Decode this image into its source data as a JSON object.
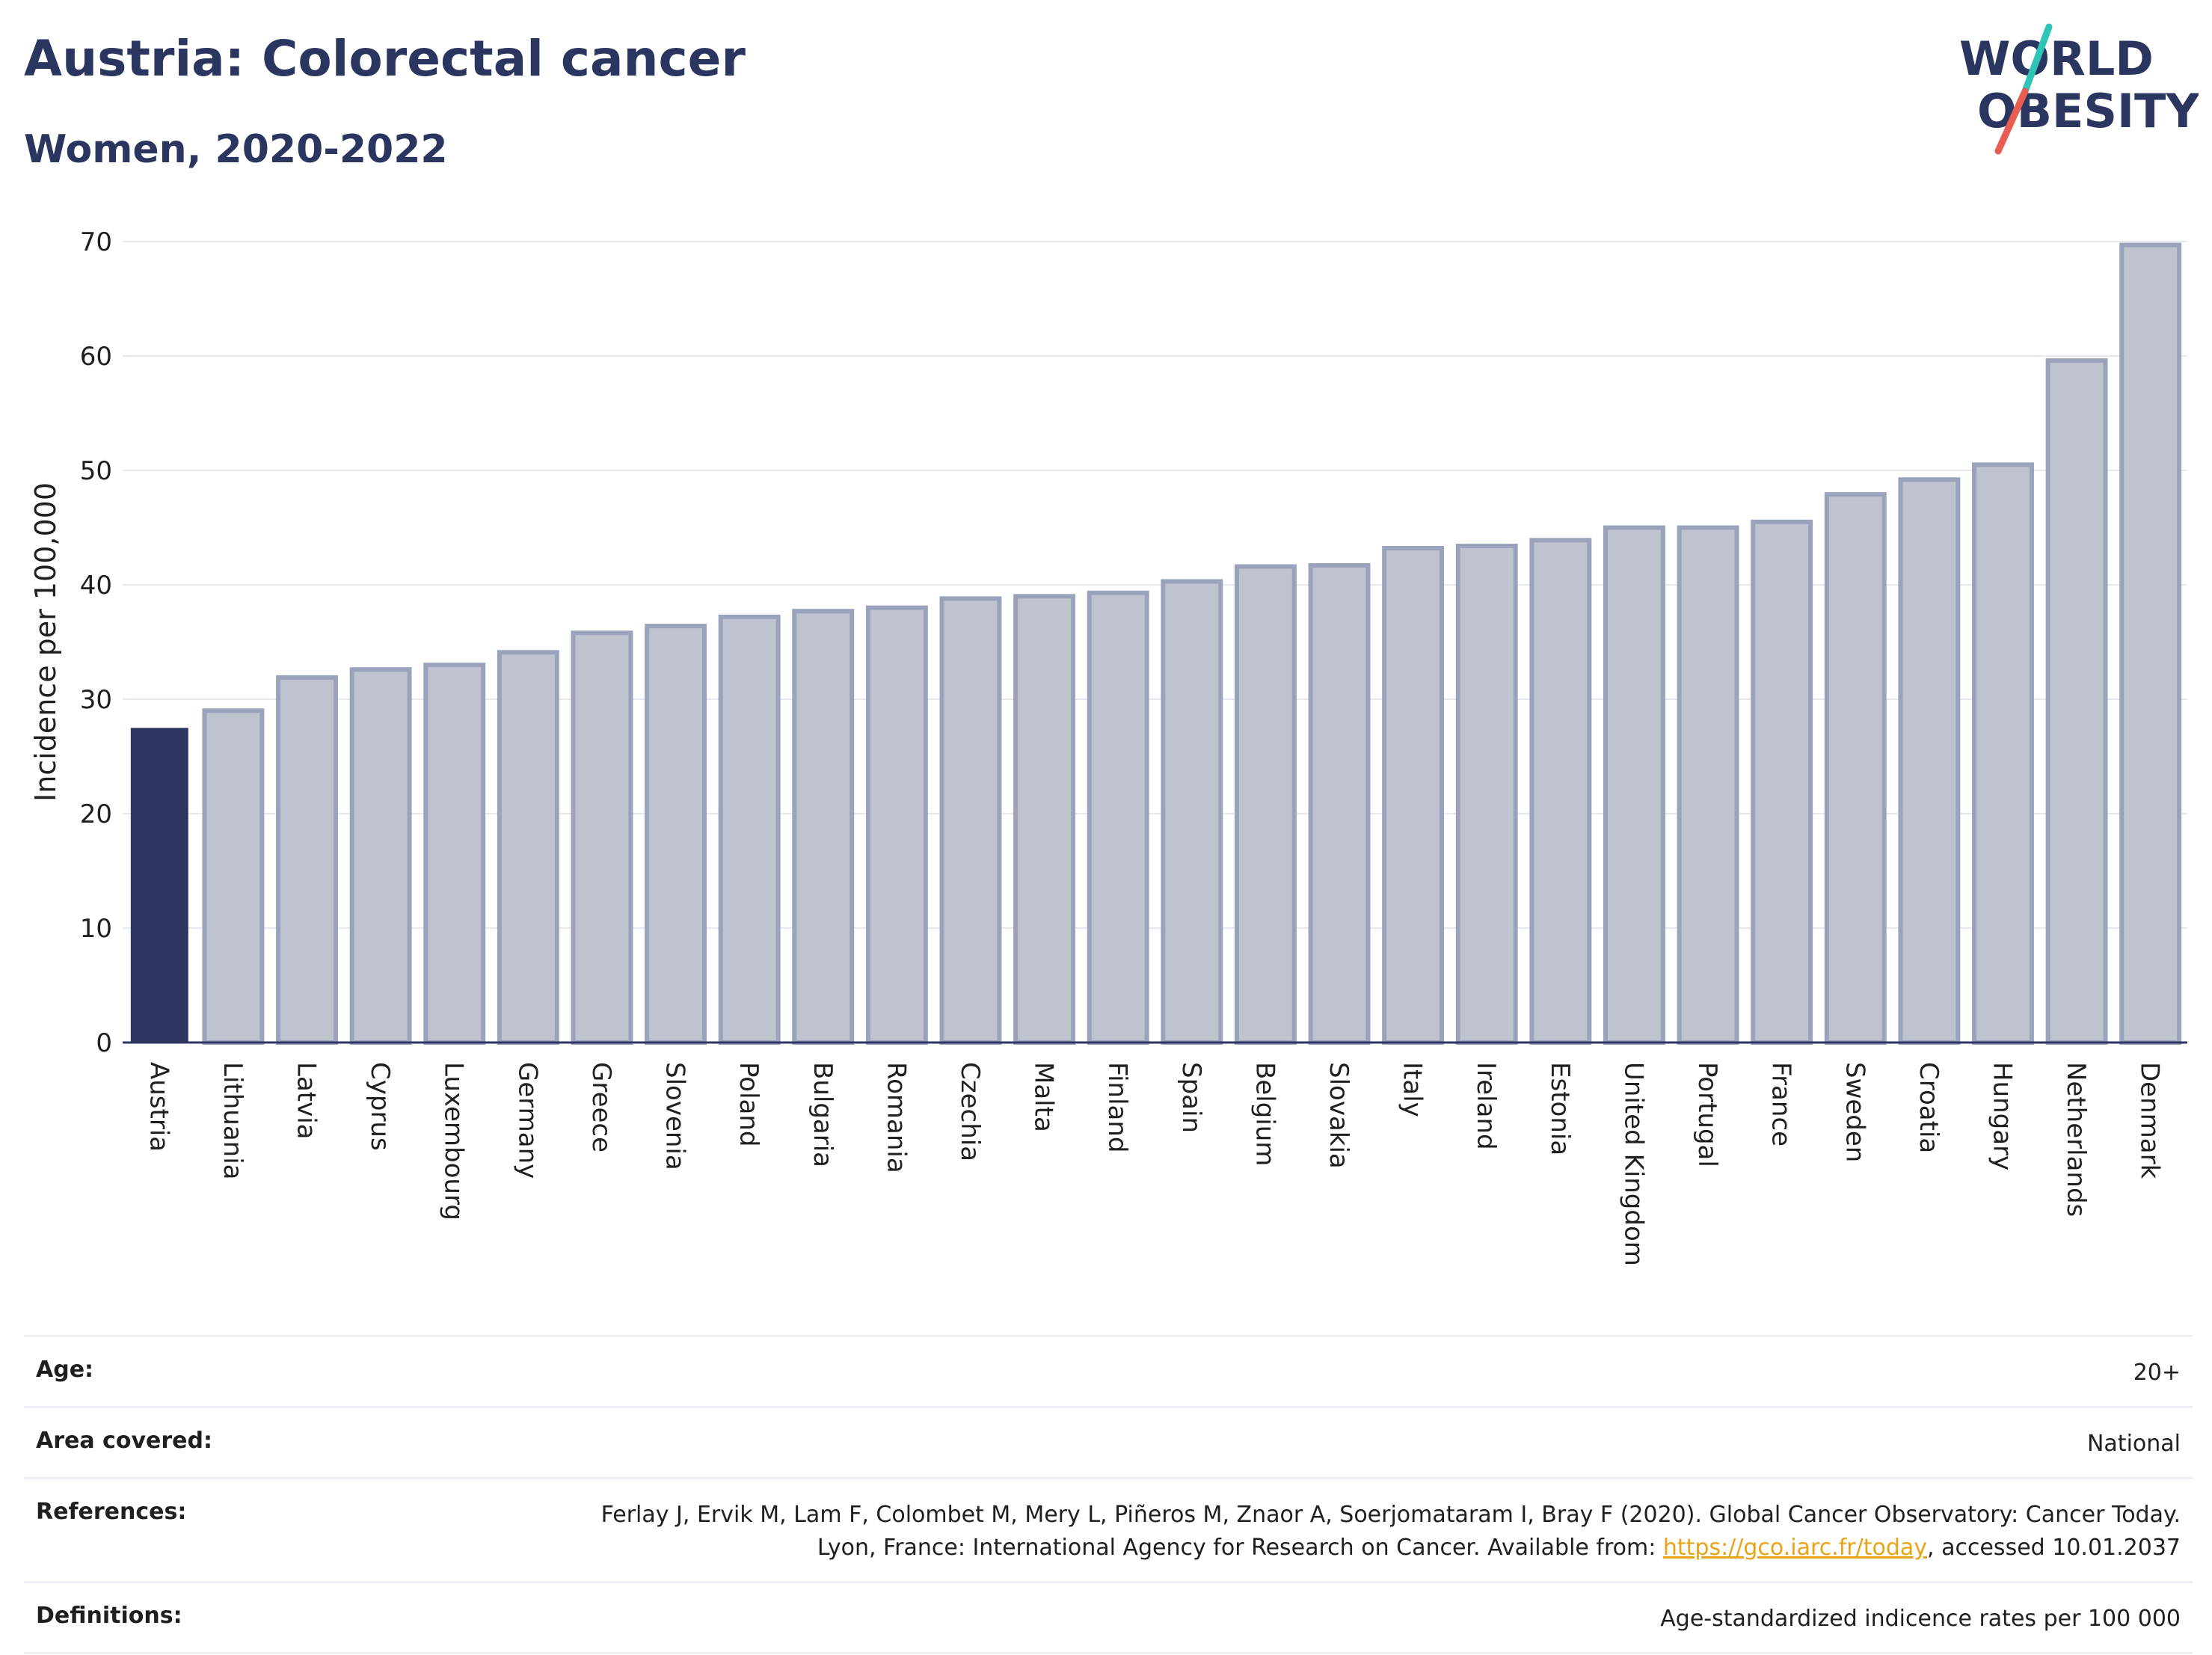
{
  "header": {
    "title": "Austria: Colorectal cancer",
    "subtitle": "Women, 2020-2022"
  },
  "logo": {
    "line1": "WORLD",
    "line2": "OBESITY",
    "text_color": "#2a3560",
    "slash_colors": [
      "#2ec4b6",
      "#e85d4f"
    ]
  },
  "colors": {
    "highlight_bar": "#2c3660",
    "bar_fill": "#bfc3d0",
    "bar_stroke": "#9ba2bb",
    "grid": "#e6e8ee",
    "axis": "#2c3660"
  },
  "chart_data": {
    "type": "bar",
    "title": "Austria: Colorectal cancer",
    "subtitle": "Women, 2020-2022",
    "xlabel": "",
    "ylabel": "Incidence per 100,000",
    "ylim": [
      0,
      70
    ],
    "yticks": [
      0,
      10,
      20,
      30,
      40,
      50,
      60,
      70
    ],
    "grid": true,
    "highlight": "Austria",
    "categories": [
      "Austria",
      "Lithuania",
      "Latvia",
      "Cyprus",
      "Luxembourg",
      "Germany",
      "Greece",
      "Slovenia",
      "Poland",
      "Bulgaria",
      "Romania",
      "Czechia",
      "Malta",
      "Finland",
      "Spain",
      "Belgium",
      "Slovakia",
      "Italy",
      "Ireland",
      "Estonia",
      "United Kingdom",
      "Portugal",
      "France",
      "Sweden",
      "Croatia",
      "Hungary",
      "Netherlands",
      "Denmark"
    ],
    "values": [
      27.5,
      29.0,
      31.9,
      32.6,
      33.0,
      34.1,
      35.8,
      36.4,
      37.2,
      37.7,
      38.0,
      38.8,
      39.0,
      39.3,
      40.3,
      41.6,
      41.7,
      43.2,
      43.4,
      43.9,
      45.0,
      45.0,
      45.5,
      47.9,
      49.2,
      50.5,
      59.6,
      69.7
    ]
  },
  "info": [
    {
      "label": "Age:",
      "value": "20+"
    },
    {
      "label": "Area covered:",
      "value": "National"
    },
    {
      "label": "References:",
      "value_pre": "Ferlay J, Ervik M, Lam F, Colombet M, Mery L, Piñeros M, Znaor A, Soerjomataram I, Bray F (2020). Global Cancer Observatory: Cancer Today. Lyon, France: International Agency for Research on Cancer. Available from: ",
      "link": "https://gco.iarc.fr/today",
      "value_post": ", accessed 10.01.2037"
    },
    {
      "label": "Definitions:",
      "value": "Age-standardized indicence rates per 100 000"
    }
  ]
}
